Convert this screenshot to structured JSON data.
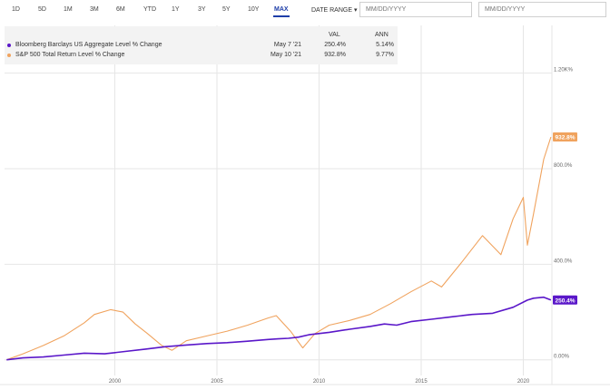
{
  "toolbar": {
    "ranges": [
      "1D",
      "5D",
      "1M",
      "3M",
      "6M",
      "YTD",
      "1Y",
      "3Y",
      "5Y",
      "10Y",
      "MAX"
    ],
    "active_range": "MAX",
    "date_range_label": "DATE RANGE",
    "start_placeholder": "MM/DD/YYYY",
    "end_placeholder": "MM/DD/YYYY"
  },
  "legend": {
    "col_val": "VAL",
    "col_ann": "ANN",
    "rows": [
      {
        "name": "Bloomberg Barclays US Aggregate Level % Change",
        "date": "May 7 '21",
        "val": "250.4%",
        "ann": "5.14%",
        "color": "#5a17c9"
      },
      {
        "name": "S&P 500 Total Return Level % Change",
        "date": "May 10 '21",
        "val": "932.8%",
        "ann": "9.77%",
        "color": "#f0a35e"
      }
    ]
  },
  "chart_data": {
    "type": "line",
    "title": "",
    "xlabel": "",
    "ylabel": "",
    "xlim": [
      1994.6,
      2021.4
    ],
    "ylim": [
      -20,
      1400
    ],
    "x_ticks": [
      "2000",
      "2005",
      "2010",
      "2015",
      "2020"
    ],
    "y_ticks": [
      "0.00%",
      "400.0%",
      "800.0%",
      "1.20K%"
    ],
    "grid": true,
    "series": [
      {
        "name": "Bloomberg Barclays US Aggregate Level % Change",
        "color": "#5a17c9",
        "end_label": "250.4%",
        "x": [
          1994.7,
          1995.5,
          1996.5,
          1997.5,
          1998.5,
          1999.5,
          2000.5,
          2001.5,
          2002.5,
          2003.5,
          2004.5,
          2005.5,
          2006.5,
          2007.5,
          2008.0,
          2008.5,
          2009.0,
          2009.5,
          2010.5,
          2011.5,
          2012.5,
          2013.2,
          2013.8,
          2014.5,
          2015.5,
          2016.5,
          2017.5,
          2018.5,
          2019.5,
          2020.2,
          2020.5,
          2021.0,
          2021.35
        ],
        "y": [
          0,
          8,
          12,
          20,
          28,
          25,
          35,
          45,
          55,
          62,
          68,
          72,
          78,
          85,
          88,
          90,
          95,
          105,
          115,
          128,
          140,
          150,
          145,
          160,
          170,
          180,
          190,
          195,
          220,
          250,
          258,
          262,
          250.4
        ]
      },
      {
        "name": "S&P 500 Total Return Level % Change",
        "color": "#f0a35e",
        "end_label": "932.8%",
        "x": [
          1994.7,
          1995.5,
          1996.5,
          1997.5,
          1998.5,
          1999.0,
          1999.8,
          2000.4,
          2001.0,
          2001.6,
          2002.3,
          2002.8,
          2003.5,
          2004.5,
          2005.5,
          2006.5,
          2007.5,
          2007.9,
          2008.6,
          2009.2,
          2009.8,
          2010.5,
          2011.5,
          2012.5,
          2013.5,
          2014.5,
          2015.5,
          2016.0,
          2017.0,
          2018.0,
          2018.9,
          2019.5,
          2020.0,
          2020.2,
          2020.5,
          2021.0,
          2021.35
        ],
        "y": [
          0,
          25,
          60,
          100,
          155,
          190,
          210,
          200,
          150,
          110,
          60,
          40,
          80,
          100,
          120,
          145,
          175,
          185,
          120,
          50,
          110,
          145,
          165,
          190,
          235,
          285,
          330,
          305,
          410,
          520,
          440,
          590,
          680,
          480,
          610,
          840,
          932.8
        ]
      }
    ]
  }
}
